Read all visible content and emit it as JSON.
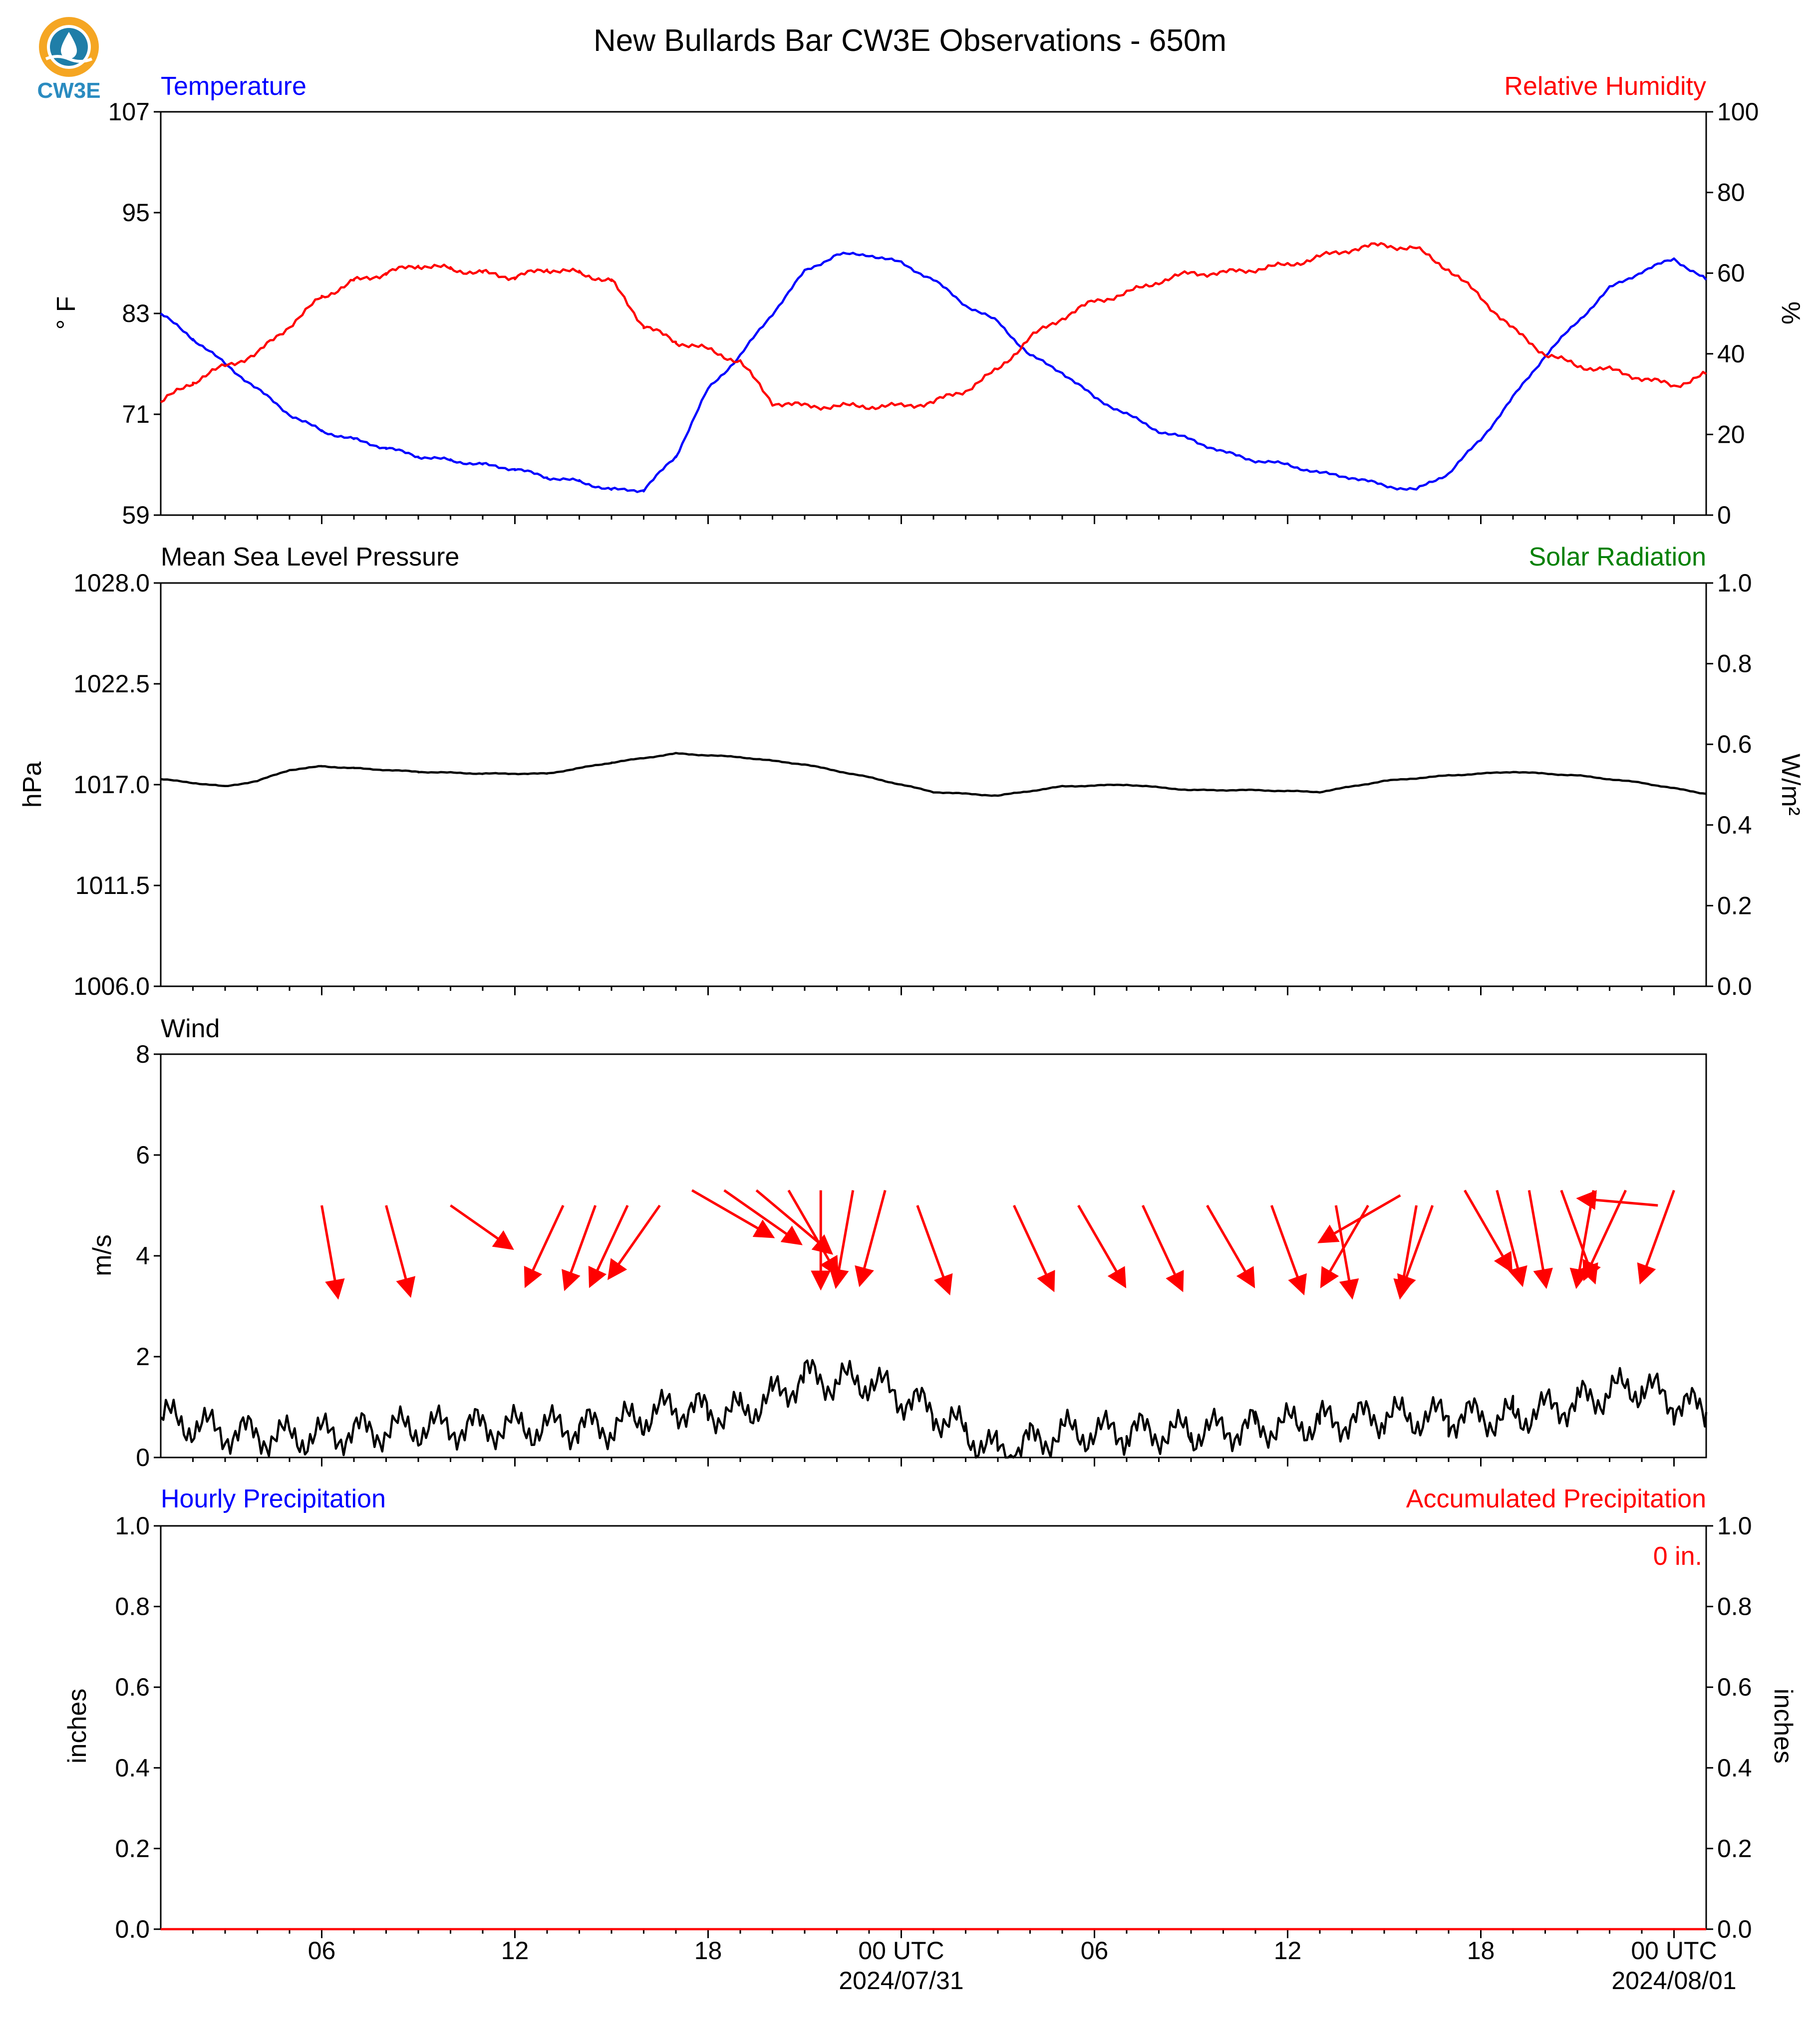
{
  "title": "New Bullards Bar CW3E Observations - 650m",
  "logo": {
    "text": "CW3E",
    "colors": {
      "ring": "#f5a623",
      "drop": "#1f7ea8",
      "text": "#2a8bc0"
    }
  },
  "colors": {
    "temperature": "#0000ff",
    "humidity": "#ff0000",
    "solar": "#008000",
    "wind_arrow": "#ff0000",
    "black": "#000000"
  },
  "x_axis": {
    "start": "2024-07-30 01:00 UTC",
    "end": "2024-08-01 01:00 UTC",
    "tick_labels": [
      "06",
      "12",
      "18",
      "00 UTC",
      "06",
      "12",
      "18",
      "00 UTC"
    ],
    "date_labels": [
      "2024/07/31",
      "2024/08/01"
    ]
  },
  "chart_data": [
    {
      "type": "line",
      "panel": "temperature-humidity",
      "left_title": "Temperature",
      "right_title": "Relative Humidity",
      "ylabel_left": "° F",
      "ylabel_right": "%",
      "ylim_left": [
        59,
        107
      ],
      "ylim_right": [
        0,
        100
      ],
      "yticks_left": [
        "59",
        "71",
        "83",
        "95",
        "107"
      ],
      "yticks_right": [
        "0",
        "20",
        "40",
        "60",
        "80",
        "100"
      ],
      "x_hours": [
        0,
        1,
        2,
        3,
        4,
        5,
        6,
        7,
        8,
        9,
        10,
        11,
        12,
        13,
        14,
        15,
        16,
        17,
        18,
        19,
        20,
        21,
        22,
        23,
        24,
        25,
        26,
        27,
        28,
        29,
        30,
        31,
        32,
        33,
        34,
        35,
        36,
        37,
        38,
        39,
        40,
        41,
        42,
        43,
        44,
        45,
        46,
        47,
        48
      ],
      "series": [
        {
          "name": "Temperature",
          "axis": "left",
          "color": "#0000ff",
          "values": [
            83,
            80,
            77,
            74,
            71,
            69,
            68,
            67,
            66,
            65.5,
            65,
            64.5,
            63.5,
            63,
            62,
            62,
            66,
            74,
            78,
            83,
            88,
            90,
            90,
            89,
            87,
            84,
            82,
            78,
            76,
            73,
            71,
            69,
            68,
            66.5,
            65.5,
            65,
            64,
            63.5,
            62.5,
            62,
            64,
            68,
            73,
            78,
            82,
            86,
            88,
            89.5,
            87
          ]
        },
        {
          "name": "Relative Humidity",
          "axis": "right",
          "color": "#ff0000",
          "values": [
            28,
            33,
            37,
            40,
            47,
            54,
            58,
            60,
            62,
            61,
            60,
            59,
            61,
            60,
            58,
            47,
            43,
            41,
            38,
            28,
            27,
            27,
            27,
            27,
            28,
            31,
            36,
            44,
            49,
            53,
            55,
            58,
            60,
            60,
            61,
            62,
            64,
            66,
            67,
            66,
            61,
            54,
            46,
            40,
            37,
            36,
            34,
            32,
            35
          ]
        }
      ]
    },
    {
      "type": "line",
      "panel": "pressure-solar",
      "left_title": "Mean Sea Level Pressure",
      "right_title": "Solar Radiation",
      "ylabel_left": "hPa",
      "ylabel_right": "W/m²",
      "ylim_left": [
        1006.0,
        1028.0
      ],
      "ylim_right": [
        0.0,
        1.0
      ],
      "yticks_left": [
        "1006.0",
        "1011.5",
        "1017.0",
        "1022.5",
        "1028.0"
      ],
      "yticks_right": [
        "0.0",
        "0.2",
        "0.4",
        "0.6",
        "0.8",
        "1.0"
      ],
      "x_hours": [
        0,
        2,
        3,
        4,
        5,
        6,
        8,
        10,
        12,
        14,
        16,
        18,
        20,
        22,
        24,
        26,
        28,
        30,
        32,
        34,
        36,
        38,
        40,
        42,
        44,
        46,
        48
      ],
      "series": [
        {
          "name": "Mean Sea Level Pressure",
          "axis": "left",
          "color": "#000000",
          "values": [
            1017.3,
            1016.9,
            1017.2,
            1017.8,
            1018.0,
            1017.9,
            1017.7,
            1017.6,
            1017.6,
            1018.2,
            1018.7,
            1018.5,
            1018.1,
            1017.4,
            1016.6,
            1016.4,
            1016.9,
            1017.0,
            1016.7,
            1016.7,
            1016.6,
            1017.2,
            1017.5,
            1017.7,
            1017.5,
            1017.1,
            1016.5
          ]
        }
      ]
    },
    {
      "type": "line",
      "panel": "wind",
      "left_title": "Wind",
      "ylabel_left": "m/s",
      "ylim_left": [
        0,
        8
      ],
      "yticks_left": [
        "0",
        "2",
        "4",
        "6",
        "8"
      ],
      "x_hours": [
        0,
        2,
        4,
        6,
        8,
        10,
        12,
        13,
        14,
        15,
        16,
        17,
        18,
        19,
        20,
        21,
        22,
        23,
        24,
        25,
        26,
        27,
        28,
        30,
        32,
        34,
        36,
        38,
        40,
        42,
        44,
        45,
        46,
        47,
        48
      ],
      "series": [
        {
          "name": "Wind Speed",
          "axis": "left",
          "color": "#000000",
          "values": [
            0.8,
            0.5,
            0.4,
            0.5,
            0.6,
            0.6,
            0.6,
            0.6,
            0.6,
            0.8,
            1.0,
            0.9,
            0.9,
            1.2,
            1.6,
            1.5,
            1.5,
            1.2,
            0.9,
            0.5,
            0.1,
            0.3,
            0.5,
            0.5,
            0.5,
            0.6,
            0.7,
            0.8,
            0.8,
            0.8,
            1.1,
            1.3,
            1.4,
            1.1,
            0.9
          ]
        }
      ],
      "wind_arrows": {
        "x_hours": [
          5,
          7,
          9,
          12.5,
          13.5,
          14.5,
          15.5,
          16.5,
          17.5,
          18.5,
          19.5,
          20.5,
          21.5,
          22.5,
          23.5,
          26.5,
          28.5,
          30.5,
          32.5,
          34.5,
          36.5,
          37.5,
          38.5,
          39,
          39.5,
          40.5,
          41.5,
          42.5,
          43.5,
          44.5,
          45.5,
          46.5,
          47
        ],
        "dir_deg": [
          350,
          345,
          305,
          25,
          20,
          25,
          35,
          300,
          305,
          310,
          330,
          0,
          10,
          15,
          340,
          335,
          330,
          335,
          330,
          340,
          350,
          30,
          60,
          10,
          20,
          330,
          345,
          350,
          340,
          10,
          25,
          95,
          20
        ],
        "y_ms": [
          5,
          5,
          5,
          5,
          5,
          5,
          5,
          5.3,
          5.3,
          5.3,
          5.3,
          5.3,
          5.3,
          5.3,
          5,
          5,
          5,
          5,
          5,
          5,
          5,
          5,
          5.2,
          5,
          5,
          5.3,
          5.3,
          5.3,
          5.3,
          5.3,
          5.3,
          5,
          5.3
        ],
        "length_ms": [
          2,
          2,
          1.6,
          1.9,
          1.9,
          1.9,
          1.9,
          2,
          2,
          2.1,
          2.1,
          2.1,
          2.1,
          2.1,
          2,
          2,
          2,
          2,
          2,
          2,
          2,
          2,
          2,
          2,
          2,
          2,
          2.1,
          2.1,
          2.1,
          2.1,
          2.1,
          1.7,
          2.1
        ]
      }
    },
    {
      "type": "line",
      "panel": "precipitation",
      "left_title": "Hourly Precipitation",
      "right_title": "Accumulated Precipitation",
      "ylabel_left": "inches",
      "ylabel_right": "inches",
      "ylim_left": [
        0.0,
        1.0
      ],
      "ylim_right": [
        0.0,
        1.0
      ],
      "yticks_left": [
        "0.0",
        "0.2",
        "0.4",
        "0.6",
        "0.8",
        "1.0"
      ],
      "yticks_right": [
        "0.0",
        "0.2",
        "0.4",
        "0.6",
        "0.8",
        "1.0"
      ],
      "accumulated_label": "0 in.",
      "x_hours": [
        0,
        48
      ],
      "series": [
        {
          "name": "Accumulated Precipitation",
          "axis": "right",
          "color": "#ff0000",
          "values": [
            0,
            0
          ]
        }
      ]
    }
  ]
}
